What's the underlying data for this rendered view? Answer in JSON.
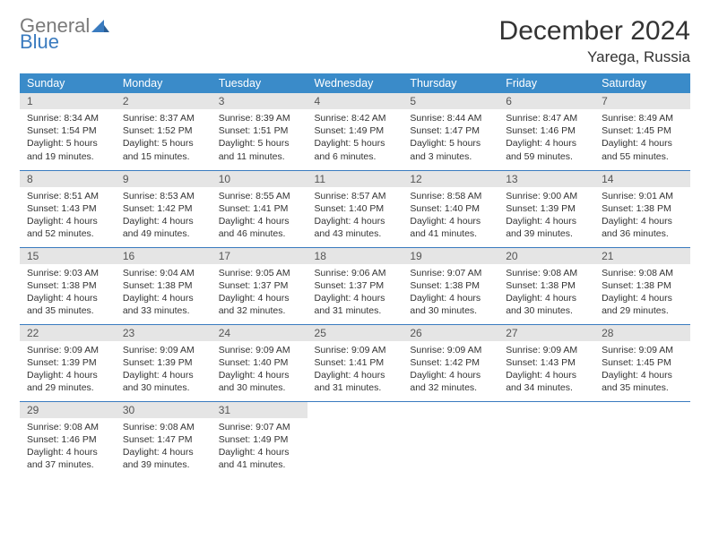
{
  "brand": {
    "general": "General",
    "blue": "Blue"
  },
  "title": "December 2024",
  "location": "Yarega, Russia",
  "header_bg": "#3a8bc9",
  "border_color": "#3a7bbf",
  "daynum_bg": "#e5e5e5",
  "weekdays": [
    "Sunday",
    "Monday",
    "Tuesday",
    "Wednesday",
    "Thursday",
    "Friday",
    "Saturday"
  ],
  "days": [
    {
      "n": "1",
      "sr": "Sunrise: 8:34 AM",
      "ss": "Sunset: 1:54 PM",
      "d1": "Daylight: 5 hours",
      "d2": "and 19 minutes."
    },
    {
      "n": "2",
      "sr": "Sunrise: 8:37 AM",
      "ss": "Sunset: 1:52 PM",
      "d1": "Daylight: 5 hours",
      "d2": "and 15 minutes."
    },
    {
      "n": "3",
      "sr": "Sunrise: 8:39 AM",
      "ss": "Sunset: 1:51 PM",
      "d1": "Daylight: 5 hours",
      "d2": "and 11 minutes."
    },
    {
      "n": "4",
      "sr": "Sunrise: 8:42 AM",
      "ss": "Sunset: 1:49 PM",
      "d1": "Daylight: 5 hours",
      "d2": "and 6 minutes."
    },
    {
      "n": "5",
      "sr": "Sunrise: 8:44 AM",
      "ss": "Sunset: 1:47 PM",
      "d1": "Daylight: 5 hours",
      "d2": "and 3 minutes."
    },
    {
      "n": "6",
      "sr": "Sunrise: 8:47 AM",
      "ss": "Sunset: 1:46 PM",
      "d1": "Daylight: 4 hours",
      "d2": "and 59 minutes."
    },
    {
      "n": "7",
      "sr": "Sunrise: 8:49 AM",
      "ss": "Sunset: 1:45 PM",
      "d1": "Daylight: 4 hours",
      "d2": "and 55 minutes."
    },
    {
      "n": "8",
      "sr": "Sunrise: 8:51 AM",
      "ss": "Sunset: 1:43 PM",
      "d1": "Daylight: 4 hours",
      "d2": "and 52 minutes."
    },
    {
      "n": "9",
      "sr": "Sunrise: 8:53 AM",
      "ss": "Sunset: 1:42 PM",
      "d1": "Daylight: 4 hours",
      "d2": "and 49 minutes."
    },
    {
      "n": "10",
      "sr": "Sunrise: 8:55 AM",
      "ss": "Sunset: 1:41 PM",
      "d1": "Daylight: 4 hours",
      "d2": "and 46 minutes."
    },
    {
      "n": "11",
      "sr": "Sunrise: 8:57 AM",
      "ss": "Sunset: 1:40 PM",
      "d1": "Daylight: 4 hours",
      "d2": "and 43 minutes."
    },
    {
      "n": "12",
      "sr": "Sunrise: 8:58 AM",
      "ss": "Sunset: 1:40 PM",
      "d1": "Daylight: 4 hours",
      "d2": "and 41 minutes."
    },
    {
      "n": "13",
      "sr": "Sunrise: 9:00 AM",
      "ss": "Sunset: 1:39 PM",
      "d1": "Daylight: 4 hours",
      "d2": "and 39 minutes."
    },
    {
      "n": "14",
      "sr": "Sunrise: 9:01 AM",
      "ss": "Sunset: 1:38 PM",
      "d1": "Daylight: 4 hours",
      "d2": "and 36 minutes."
    },
    {
      "n": "15",
      "sr": "Sunrise: 9:03 AM",
      "ss": "Sunset: 1:38 PM",
      "d1": "Daylight: 4 hours",
      "d2": "and 35 minutes."
    },
    {
      "n": "16",
      "sr": "Sunrise: 9:04 AM",
      "ss": "Sunset: 1:38 PM",
      "d1": "Daylight: 4 hours",
      "d2": "and 33 minutes."
    },
    {
      "n": "17",
      "sr": "Sunrise: 9:05 AM",
      "ss": "Sunset: 1:37 PM",
      "d1": "Daylight: 4 hours",
      "d2": "and 32 minutes."
    },
    {
      "n": "18",
      "sr": "Sunrise: 9:06 AM",
      "ss": "Sunset: 1:37 PM",
      "d1": "Daylight: 4 hours",
      "d2": "and 31 minutes."
    },
    {
      "n": "19",
      "sr": "Sunrise: 9:07 AM",
      "ss": "Sunset: 1:38 PM",
      "d1": "Daylight: 4 hours",
      "d2": "and 30 minutes."
    },
    {
      "n": "20",
      "sr": "Sunrise: 9:08 AM",
      "ss": "Sunset: 1:38 PM",
      "d1": "Daylight: 4 hours",
      "d2": "and 30 minutes."
    },
    {
      "n": "21",
      "sr": "Sunrise: 9:08 AM",
      "ss": "Sunset: 1:38 PM",
      "d1": "Daylight: 4 hours",
      "d2": "and 29 minutes."
    },
    {
      "n": "22",
      "sr": "Sunrise: 9:09 AM",
      "ss": "Sunset: 1:39 PM",
      "d1": "Daylight: 4 hours",
      "d2": "and 29 minutes."
    },
    {
      "n": "23",
      "sr": "Sunrise: 9:09 AM",
      "ss": "Sunset: 1:39 PM",
      "d1": "Daylight: 4 hours",
      "d2": "and 30 minutes."
    },
    {
      "n": "24",
      "sr": "Sunrise: 9:09 AM",
      "ss": "Sunset: 1:40 PM",
      "d1": "Daylight: 4 hours",
      "d2": "and 30 minutes."
    },
    {
      "n": "25",
      "sr": "Sunrise: 9:09 AM",
      "ss": "Sunset: 1:41 PM",
      "d1": "Daylight: 4 hours",
      "d2": "and 31 minutes."
    },
    {
      "n": "26",
      "sr": "Sunrise: 9:09 AM",
      "ss": "Sunset: 1:42 PM",
      "d1": "Daylight: 4 hours",
      "d2": "and 32 minutes."
    },
    {
      "n": "27",
      "sr": "Sunrise: 9:09 AM",
      "ss": "Sunset: 1:43 PM",
      "d1": "Daylight: 4 hours",
      "d2": "and 34 minutes."
    },
    {
      "n": "28",
      "sr": "Sunrise: 9:09 AM",
      "ss": "Sunset: 1:45 PM",
      "d1": "Daylight: 4 hours",
      "d2": "and 35 minutes."
    },
    {
      "n": "29",
      "sr": "Sunrise: 9:08 AM",
      "ss": "Sunset: 1:46 PM",
      "d1": "Daylight: 4 hours",
      "d2": "and 37 minutes."
    },
    {
      "n": "30",
      "sr": "Sunrise: 9:08 AM",
      "ss": "Sunset: 1:47 PM",
      "d1": "Daylight: 4 hours",
      "d2": "and 39 minutes."
    },
    {
      "n": "31",
      "sr": "Sunrise: 9:07 AM",
      "ss": "Sunset: 1:49 PM",
      "d1": "Daylight: 4 hours",
      "d2": "and 41 minutes."
    }
  ]
}
